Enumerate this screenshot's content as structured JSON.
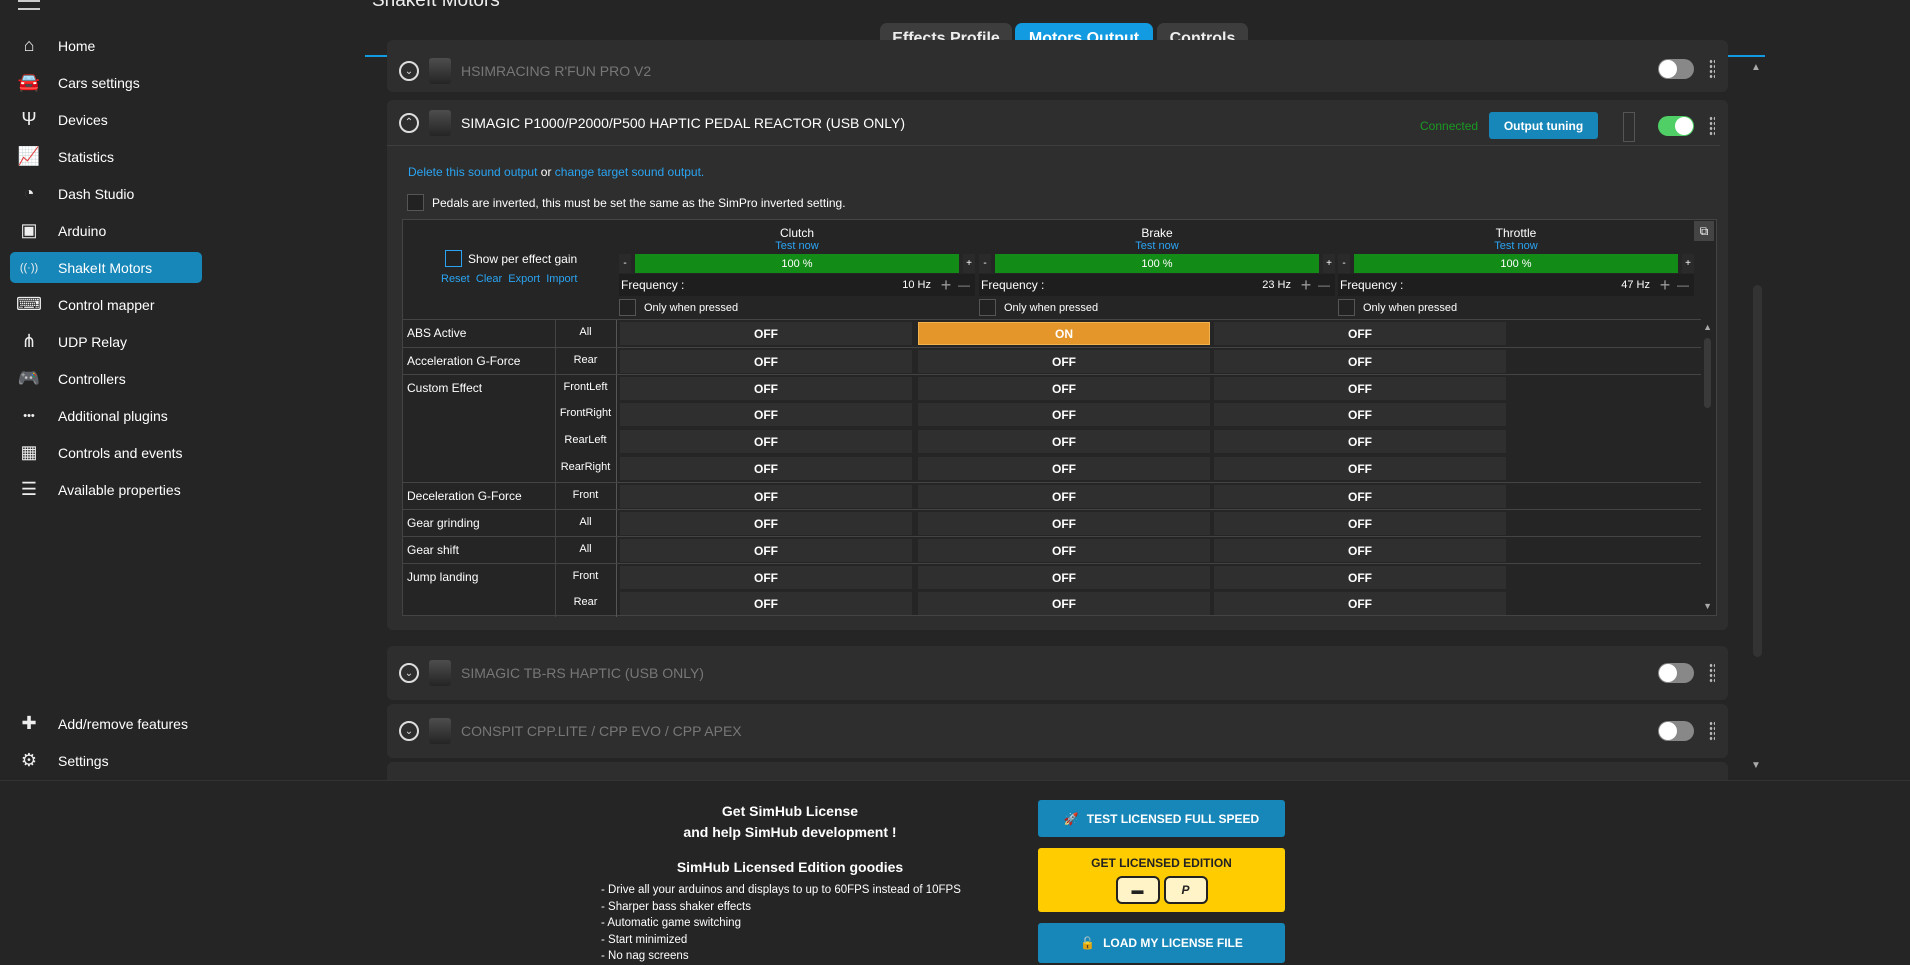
{
  "page_title": "ShakeIt Motors",
  "sidebar": {
    "items": [
      {
        "label": "Home",
        "icon": "home-icon",
        "glyph": "⌂"
      },
      {
        "label": "Cars settings",
        "icon": "car-icon",
        "glyph": "🚘"
      },
      {
        "label": "Devices",
        "icon": "usb-icon",
        "glyph": "Ψ"
      },
      {
        "label": "Statistics",
        "icon": "chart-icon",
        "glyph": "📈"
      },
      {
        "label": "Dash Studio",
        "icon": "gauge-icon",
        "glyph": "◔"
      },
      {
        "label": "Arduino",
        "icon": "arduino-icon",
        "glyph": "▣"
      },
      {
        "label": "ShakeIt Motors",
        "icon": "vibration-icon",
        "glyph": "((·))",
        "active": true
      },
      {
        "label": "Control mapper",
        "icon": "control-mapper-icon",
        "glyph": "⌨"
      },
      {
        "label": "UDP Relay",
        "icon": "network-icon",
        "glyph": "⋔"
      },
      {
        "label": "Controllers",
        "icon": "gamepad-icon",
        "glyph": "🎮"
      },
      {
        "label": "Additional plugins",
        "icon": "dots-icon",
        "glyph": "•••"
      },
      {
        "label": "Controls and events",
        "icon": "keyboard-icon",
        "glyph": "▦"
      },
      {
        "label": "Available properties",
        "icon": "list-icon",
        "glyph": "☰"
      }
    ],
    "bottom": [
      {
        "label": "Add/remove features",
        "icon": "puzzle-icon",
        "glyph": "✚"
      },
      {
        "label": "Settings",
        "icon": "gear-icon",
        "glyph": "⚙"
      }
    ]
  },
  "tabs": [
    {
      "label": "Effects Profile"
    },
    {
      "label": "Motors Output",
      "active": true
    },
    {
      "label": "Controls"
    }
  ],
  "devices": {
    "d1": {
      "name": "HSIMRACING R'FUN PRO V2",
      "enabled": false
    },
    "d2": {
      "name": "SIMAGIC P1000/P2000/P500 HAPTIC PEDAL REACTOR (USB ONLY)",
      "status": "Connected",
      "output_tuning": "Output tuning",
      "enabled": true,
      "delete_link": "Delete this sound output",
      "or": "or",
      "change_link": "change target sound output.",
      "inverted_label": "Pedals are inverted, this must be set the same as the SimPro inverted setting.",
      "show_gain": "Show per effect gain",
      "reset": "Reset",
      "clear": "Clear",
      "export": "Export",
      "import": "Import",
      "channels": [
        {
          "name": "Clutch",
          "test": "Test now",
          "gain": "100 %",
          "gain_value": 100,
          "freq_label": "Frequency :",
          "freq": "10 Hz",
          "only_pressed": "Only when pressed"
        },
        {
          "name": "Brake",
          "test": "Test now",
          "gain": "100 %",
          "gain_value": 100,
          "freq_label": "Frequency :",
          "freq": "23 Hz",
          "only_pressed": "Only when pressed"
        },
        {
          "name": "Throttle",
          "test": "Test now",
          "gain": "100 %",
          "gain_value": 100,
          "freq_label": "Frequency :",
          "freq": "47 Hz",
          "only_pressed": "Only when pressed"
        }
      ],
      "rows": [
        {
          "effect": "ABS Active",
          "loc": "All",
          "v": [
            "OFF",
            "ON",
            "OFF"
          ]
        },
        {
          "effect": "Acceleration G-Force",
          "loc": "Rear",
          "v": [
            "OFF",
            "OFF",
            "OFF"
          ]
        },
        {
          "effect": "Custom Effect",
          "loc": "FrontLeft",
          "v": [
            "OFF",
            "OFF",
            "OFF"
          ]
        },
        {
          "effect": "",
          "loc": "FrontRight",
          "v": [
            "OFF",
            "OFF",
            "OFF"
          ]
        },
        {
          "effect": "",
          "loc": "RearLeft",
          "v": [
            "OFF",
            "OFF",
            "OFF"
          ]
        },
        {
          "effect": "",
          "loc": "RearRight",
          "v": [
            "OFF",
            "OFF",
            "OFF"
          ]
        },
        {
          "effect": "Deceleration G-Force",
          "loc": "Front",
          "v": [
            "OFF",
            "OFF",
            "OFF"
          ]
        },
        {
          "effect": "Gear grinding",
          "loc": "All",
          "v": [
            "OFF",
            "OFF",
            "OFF"
          ]
        },
        {
          "effect": "Gear shift",
          "loc": "All",
          "v": [
            "OFF",
            "OFF",
            "OFF"
          ]
        },
        {
          "effect": "Jump landing",
          "loc": "Front",
          "v": [
            "OFF",
            "OFF",
            "OFF"
          ]
        },
        {
          "effect": "",
          "loc": "Rear",
          "v": [
            "OFF",
            "OFF",
            "OFF"
          ]
        }
      ]
    },
    "d3": {
      "name": "SIMAGIC TB-RS HAPTIC (USB ONLY)",
      "enabled": false
    },
    "d4": {
      "name": "CONSPIT CPP.LITE / CPP EVO / CPP APEX",
      "enabled": false
    }
  },
  "license": {
    "title1": "Get SimHub License",
    "title2": "and help SimHub development !",
    "goodies_title": "SimHub Licensed Edition goodies",
    "goodies": [
      "- Drive all your arduinos and displays to up to 60FPS instead of 10FPS",
      "- Sharper bass shaker effects",
      "- Automatic game switching",
      "- Start minimized",
      "- No nag screens"
    ],
    "test_btn": "TEST LICENSED FULL SPEED",
    "get_btn": "GET LICENSED EDITION",
    "load_btn": "LOAD MY LICENSE FILE"
  },
  "colors": {
    "accent": "#129be0",
    "sidebar_active": "#1786b8",
    "on": "#e4962a",
    "gain": "#138b17",
    "connected": "#1a9a22",
    "license_yellow": "#ffcc00"
  }
}
